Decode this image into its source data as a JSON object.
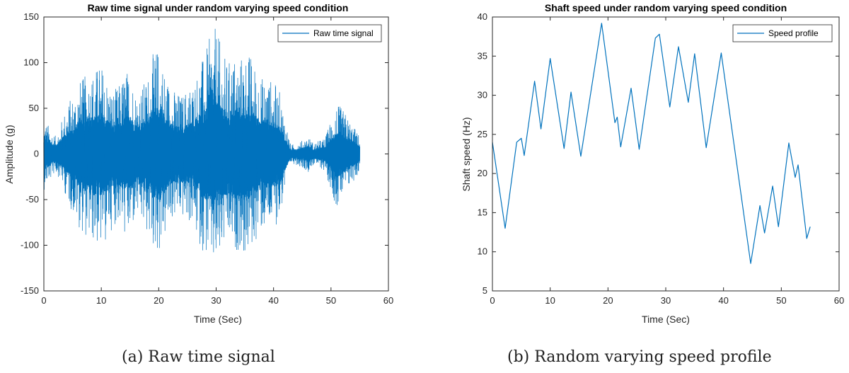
{
  "chart_data": [
    {
      "type": "line",
      "title": "Raw time signal under random varying speed condition",
      "xlabel": "Time (Sec)",
      "ylabel": "Amplitude (g)",
      "xlim": [
        0,
        60
      ],
      "ylim": [
        -150,
        150
      ],
      "xticks": [
        0,
        10,
        20,
        30,
        40,
        50,
        60
      ],
      "yticks": [
        -150,
        -100,
        -50,
        0,
        50,
        100,
        150
      ],
      "grid": false,
      "legend_position": "top-right",
      "color": "#0072BD",
      "series": [
        {
          "name": "Raw time signal",
          "envelope": {
            "x": [
              0,
              1,
              2,
              3,
              4,
              5,
              6,
              7,
              8,
              9,
              10,
              11,
              12,
              13,
              14,
              15,
              16,
              17,
              18,
              19,
              20,
              21,
              22,
              23,
              24,
              25,
              26,
              27,
              28,
              29,
              30,
              31,
              32,
              33,
              34,
              35,
              36,
              37,
              38,
              39,
              40,
              41,
              42,
              43,
              44,
              45,
              46,
              47,
              48,
              49,
              50,
              51,
              52,
              53,
              54,
              55
            ],
            "upper": [
              40,
              30,
              20,
              35,
              55,
              65,
              80,
              85,
              90,
              95,
              100,
              85,
              70,
              75,
              90,
              95,
              70,
              75,
              85,
              110,
              120,
              95,
              75,
              70,
              65,
              75,
              80,
              95,
              110,
              130,
              140,
              115,
              100,
              110,
              105,
              115,
              110,
              95,
              85,
              85,
              80,
              70,
              40,
              10,
              12,
              15,
              20,
              12,
              15,
              18,
              40,
              55,
              50,
              40,
              30,
              20
            ],
            "lower": [
              -40,
              -30,
              -20,
              -30,
              -50,
              -65,
              -80,
              -90,
              -95,
              -100,
              -105,
              -95,
              -80,
              -75,
              -90,
              -95,
              -70,
              -80,
              -90,
              -105,
              -110,
              -95,
              -75,
              -70,
              -70,
              -75,
              -80,
              -100,
              -110,
              -120,
              -135,
              -110,
              -100,
              -110,
              -105,
              -115,
              -110,
              -95,
              -85,
              -85,
              -80,
              -75,
              -40,
              -10,
              -12,
              -15,
              -20,
              -12,
              -15,
              -20,
              -40,
              -60,
              -50,
              -40,
              -30,
              -20
            ]
          }
        }
      ]
    },
    {
      "type": "line",
      "title": "Shaft speed under random varying speed condition",
      "xlabel": "Time (Sec)",
      "ylabel": "Shaft speed (Hz)",
      "xlim": [
        0,
        60
      ],
      "ylim": [
        5,
        40
      ],
      "xticks": [
        0,
        10,
        20,
        30,
        40,
        50,
        60
      ],
      "yticks": [
        5,
        10,
        15,
        20,
        25,
        30,
        35,
        40
      ],
      "grid": false,
      "legend_position": "top-right",
      "color": "#0072BD",
      "series": [
        {
          "name": "Speed profile",
          "x": [
            0,
            2.2,
            4.2,
            5.0,
            5.5,
            7.3,
            8.4,
            10.0,
            12.4,
            13.6,
            15.3,
            18.9,
            21.2,
            21.6,
            22.2,
            24.0,
            25.4,
            28.2,
            28.9,
            30.7,
            32.2,
            33.9,
            35.0,
            37.0,
            39.6,
            44.7,
            46.3,
            47.1,
            48.5,
            49.5,
            51.3,
            52.4,
            52.9,
            54.4,
            55.0
          ],
          "y": [
            24.0,
            13.0,
            24.0,
            24.5,
            22.3,
            31.8,
            25.7,
            34.7,
            23.2,
            30.4,
            22.2,
            39.2,
            26.5,
            27.2,
            23.4,
            30.9,
            23.1,
            37.3,
            37.8,
            28.5,
            36.2,
            29.1,
            35.3,
            23.3,
            35.4,
            8.5,
            15.9,
            12.4,
            18.4,
            13.2,
            23.9,
            19.5,
            21.1,
            11.7,
            13.2
          ]
        }
      ]
    }
  ],
  "captions": {
    "a": "(a) Raw time signal",
    "b": "(b) Random varying speed profile"
  }
}
